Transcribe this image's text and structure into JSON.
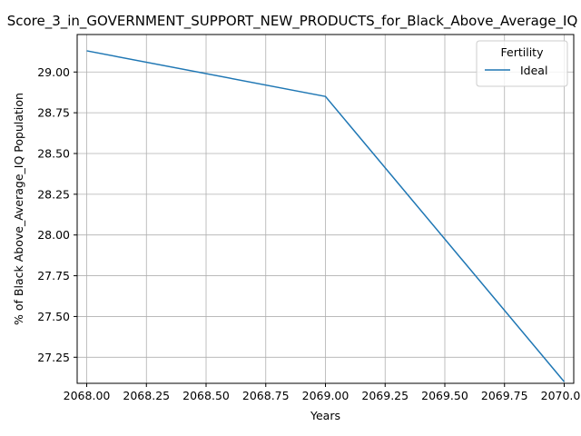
{
  "chart_data": {
    "type": "line",
    "title": "Score_3_in_GOVERNMENT_SUPPORT_NEW_PRODUCTS_for_Black_Above_Average_IQ",
    "xlabel": "Years",
    "ylabel": "% of Black Above_Average_IQ Population",
    "xlim": [
      2067.96,
      2070.04
    ],
    "ylim": [
      27.09,
      29.23
    ],
    "x_ticks": [
      2068.0,
      2068.25,
      2068.5,
      2068.75,
      2069.0,
      2069.25,
      2069.5,
      2069.75,
      2070.0
    ],
    "x_tick_labels": [
      "2068.00",
      "2068.25",
      "2068.50",
      "2068.75",
      "2069.00",
      "2069.25",
      "2069.50",
      "2069.75",
      "2070.00"
    ],
    "y_ticks": [
      27.25,
      27.5,
      27.75,
      28.0,
      28.25,
      28.5,
      28.75,
      29.0
    ],
    "y_tick_labels": [
      "27.25",
      "27.50",
      "27.75",
      "28.00",
      "28.25",
      "28.50",
      "28.75",
      "29.00"
    ],
    "grid": true,
    "legend": {
      "title": "Fertility",
      "placement": "top-right"
    },
    "series": [
      {
        "name": "Ideal",
        "color": "#1f77b4",
        "x": [
          2068,
          2069,
          2070
        ],
        "y": [
          29.13,
          28.85,
          27.1
        ]
      }
    ]
  }
}
